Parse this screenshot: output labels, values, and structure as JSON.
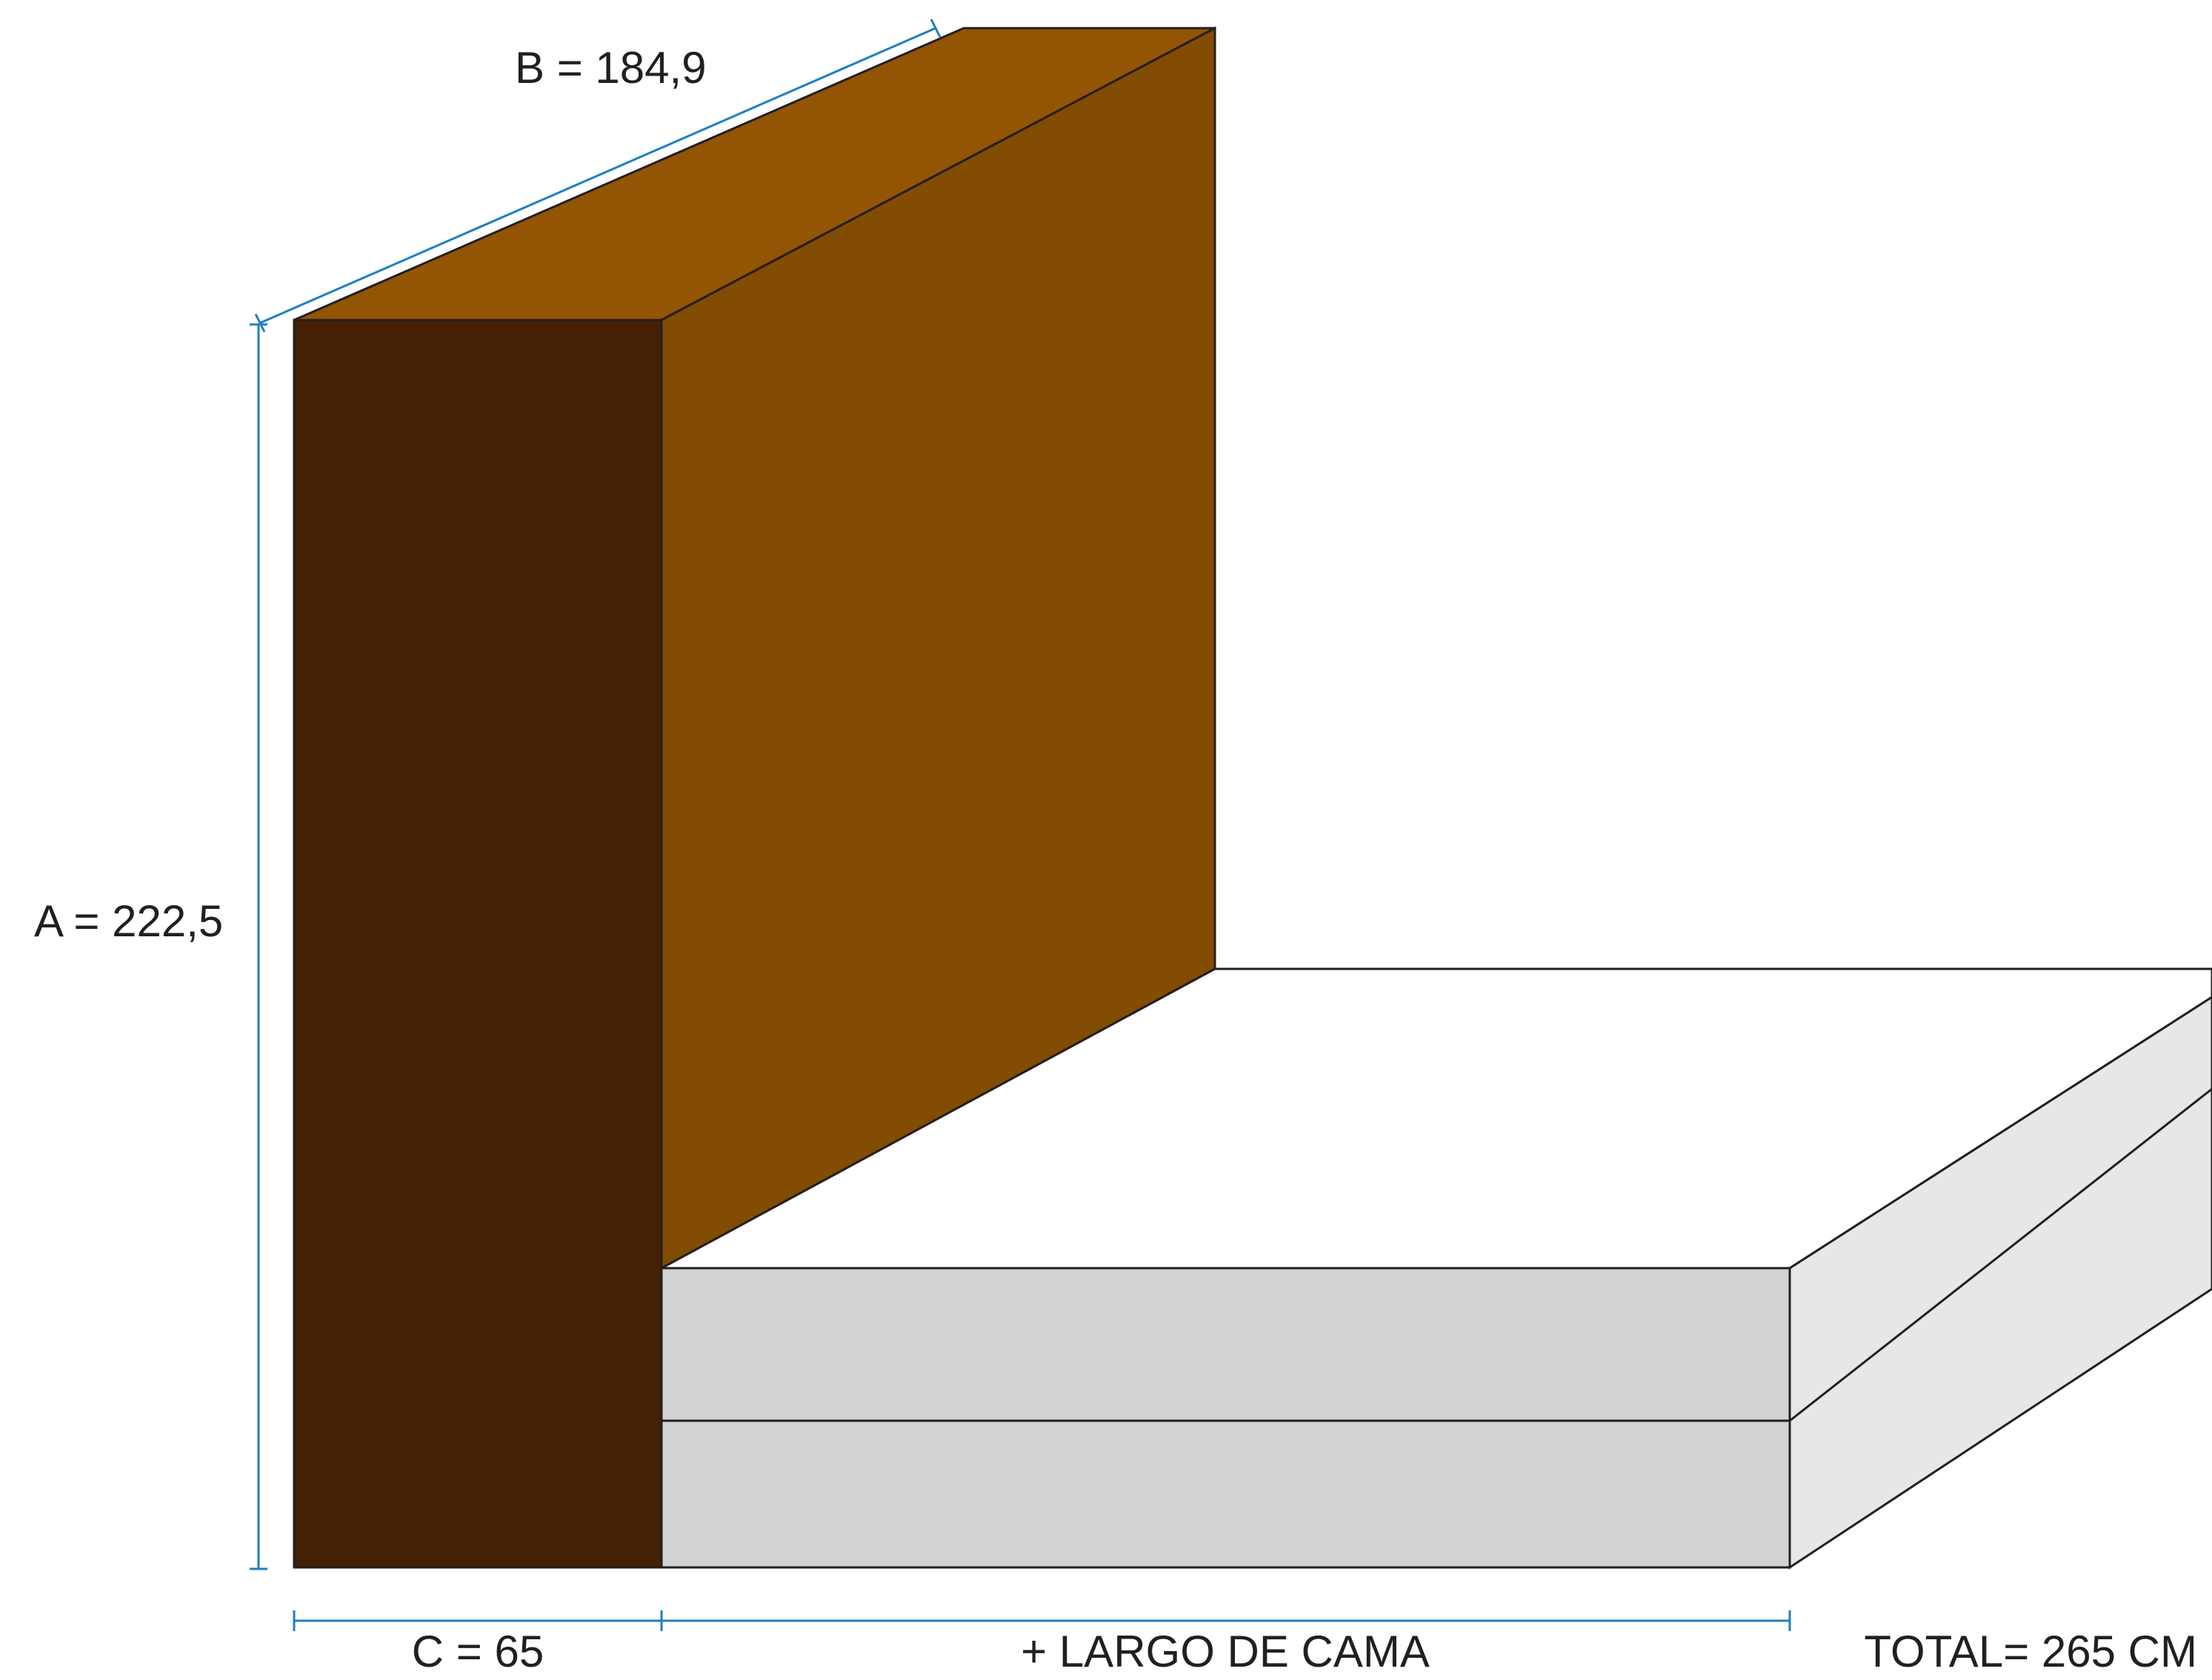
{
  "colors": {
    "headboard_front": "#452005",
    "headboard_side": "#834c03",
    "headboard_top": "#935404",
    "mattress_front": "#d1d2d4",
    "mattress_side": "#e6e7e8",
    "mattress_top": "#ffffff",
    "outline": "#231f20",
    "dimension_line": "#1f7fc2"
  },
  "labels": {
    "a": "A = 222,5",
    "b": "B = 184,9",
    "c": "C = 65",
    "largo": "+ LARGO DE CAMA",
    "total": "TOTAL= 265 CM"
  }
}
